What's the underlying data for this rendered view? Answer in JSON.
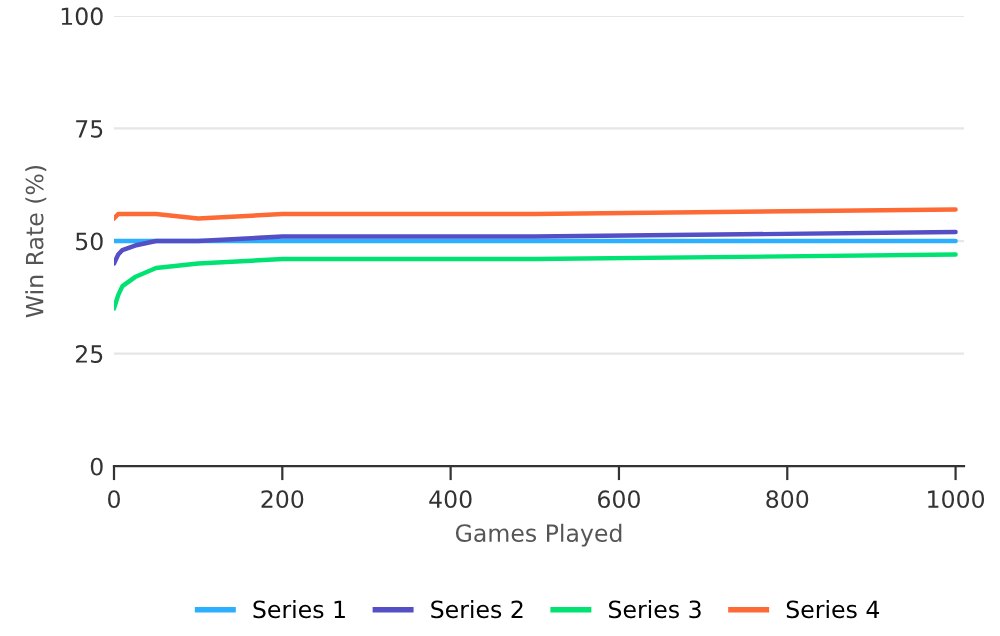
{
  "chart_data": {
    "type": "line",
    "xlabel": "Games Played",
    "ylabel": "Win Rate (%)",
    "xlim": [
      0,
      1010
    ],
    "xticks": [
      0,
      200,
      400,
      600,
      800,
      1000
    ],
    "ylim": [
      0,
      100
    ],
    "yticks": [
      0,
      25,
      50,
      75,
      100
    ],
    "grid": "y",
    "legend": "bottom",
    "series": [
      {
        "name": "Series 1",
        "color": "#2caffe",
        "x": [
          0,
          5,
          10,
          25,
          50,
          100,
          200,
          500,
          1000
        ],
        "values": [
          50,
          50,
          50,
          50,
          50,
          50,
          50,
          50,
          50
        ]
      },
      {
        "name": "Series 2",
        "color": "#544fc5",
        "x": [
          0,
          5,
          10,
          25,
          50,
          100,
          200,
          500,
          1000
        ],
        "values": [
          45,
          47,
          48,
          49,
          50,
          50,
          51,
          51,
          52
        ]
      },
      {
        "name": "Series 3",
        "color": "#00e272",
        "x": [
          0,
          5,
          10,
          25,
          50,
          100,
          200,
          500,
          1000
        ],
        "values": [
          35,
          38,
          40,
          42,
          44,
          45,
          46,
          46,
          47
        ]
      },
      {
        "name": "Series 4",
        "color": "#fe6a35",
        "x": [
          0,
          5,
          10,
          25,
          50,
          100,
          200,
          500,
          1000
        ],
        "values": [
          55,
          56,
          56,
          56,
          56,
          55,
          56,
          56,
          57
        ]
      }
    ]
  }
}
